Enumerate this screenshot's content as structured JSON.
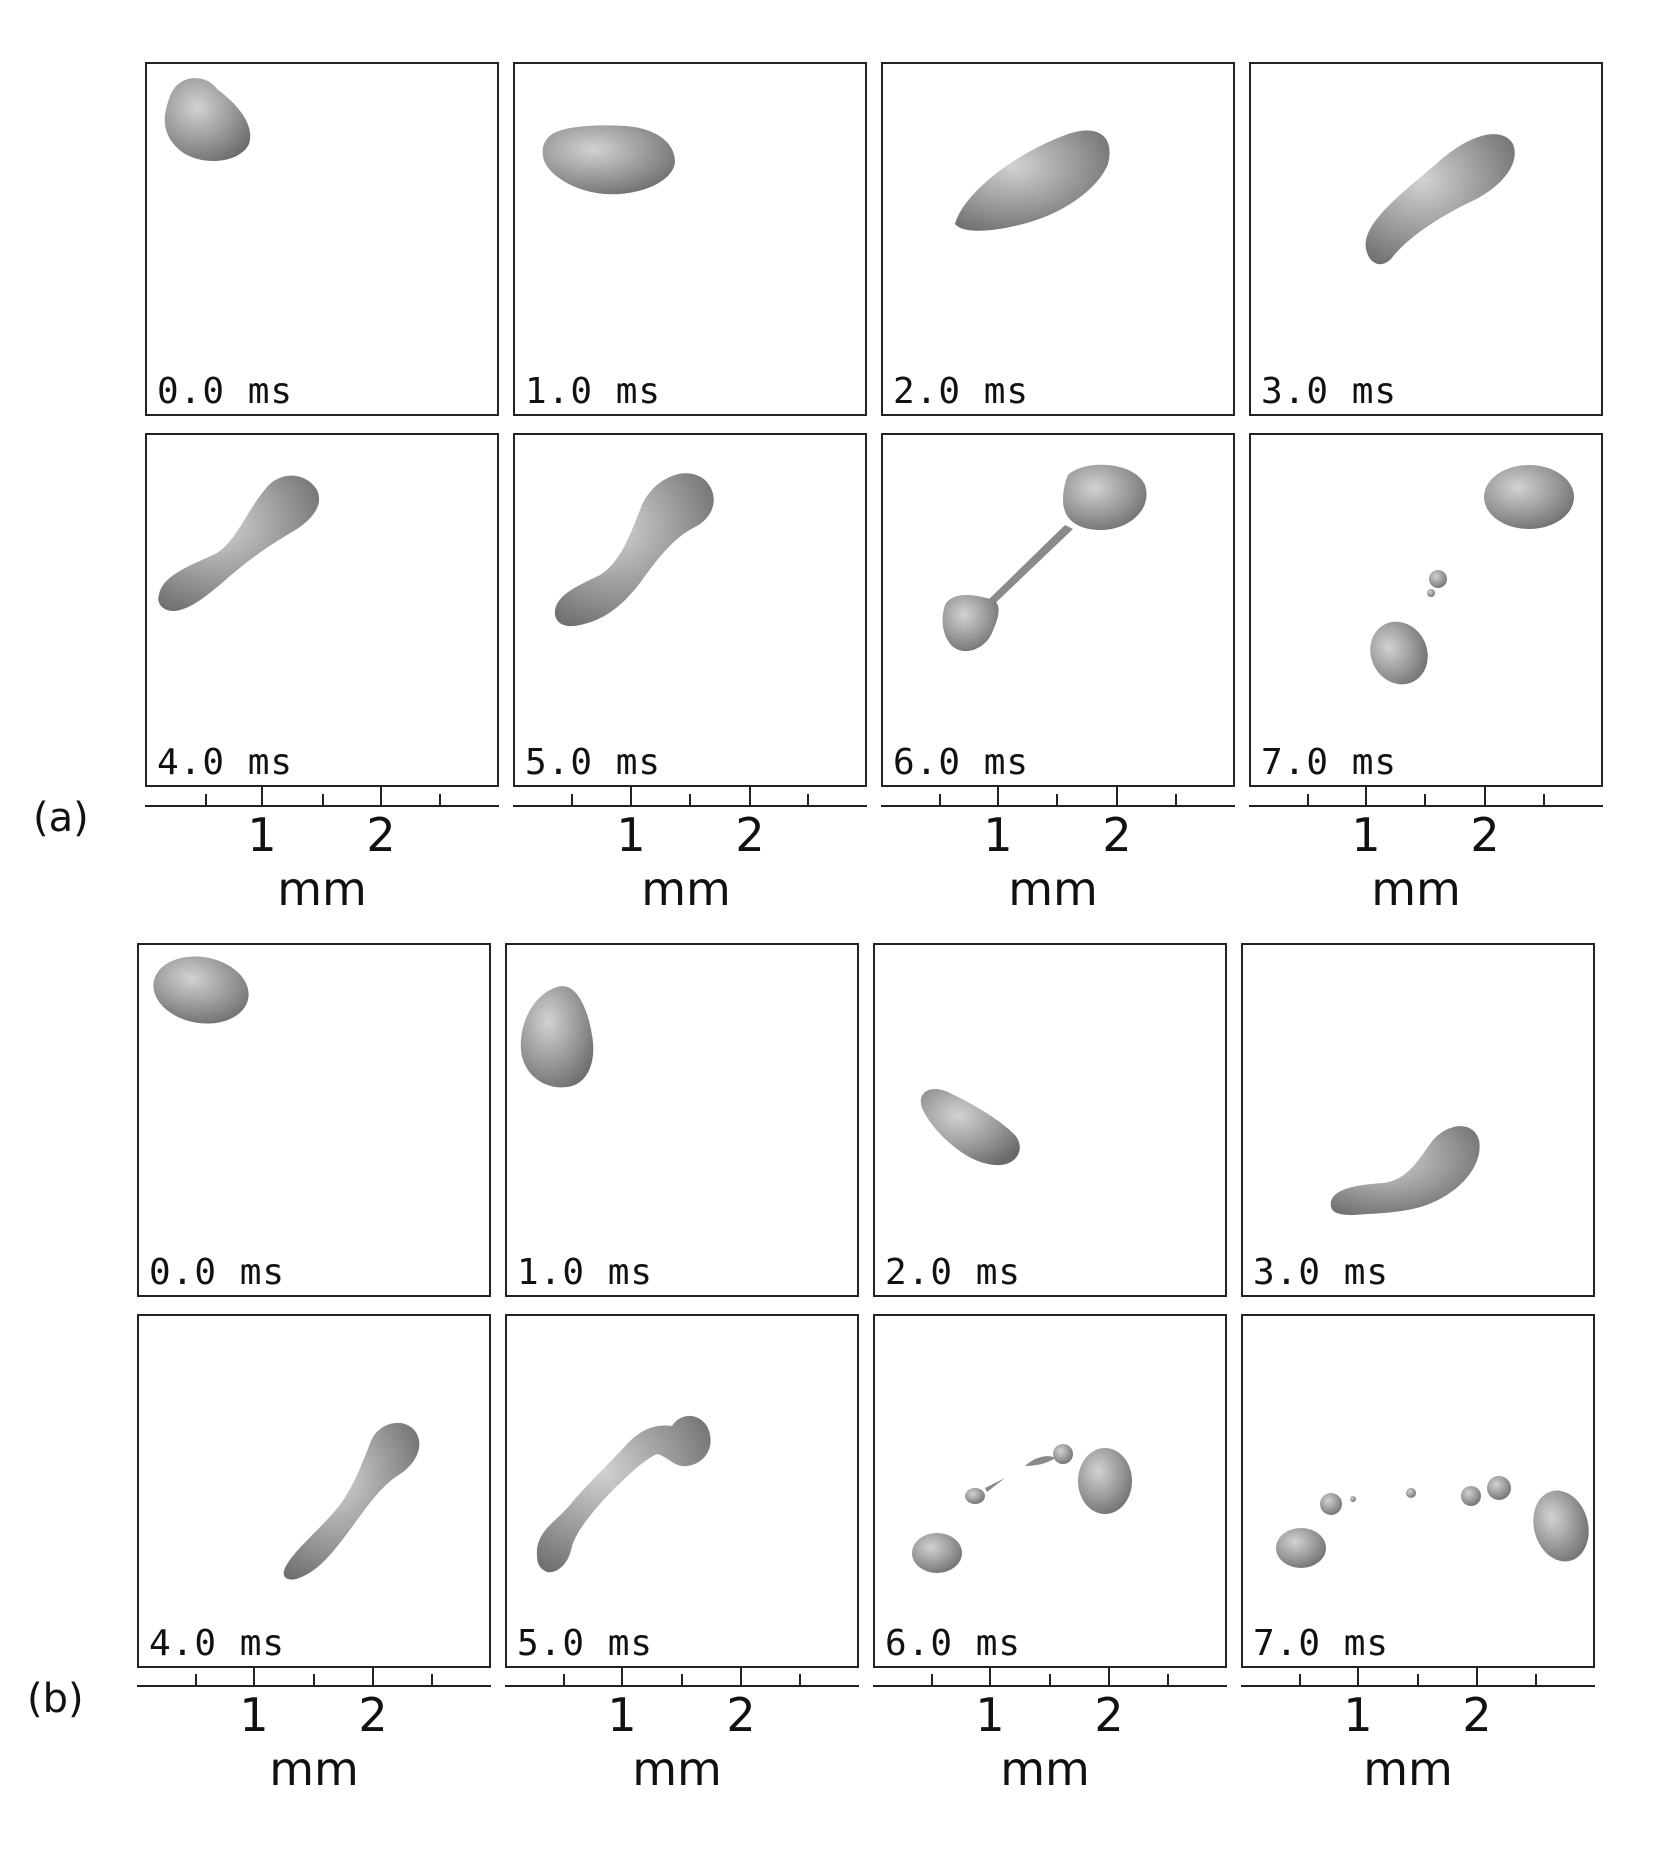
{
  "groups": [
    {
      "label": "(a)",
      "times": [
        "0.0 ms",
        "1.0 ms",
        "2.0 ms",
        "3.0 ms",
        "4.0 ms",
        "5.0 ms",
        "6.0 ms",
        "7.0 ms"
      ],
      "axis": {
        "ticks": [
          "1",
          "2"
        ],
        "unit": "mm"
      }
    },
    {
      "label": "(b)",
      "times": [
        "0.0 ms",
        "1.0 ms",
        "2.0 ms",
        "3.0 ms",
        "4.0 ms",
        "5.0 ms",
        "6.0 ms",
        "7.0 ms"
      ],
      "axis": {
        "ticks": [
          "1",
          "2"
        ],
        "unit": "mm"
      }
    }
  ],
  "colors": {
    "droplet": "#8a8a8a",
    "droplet_highlight": "#c8c8c8",
    "border": "#222222"
  }
}
